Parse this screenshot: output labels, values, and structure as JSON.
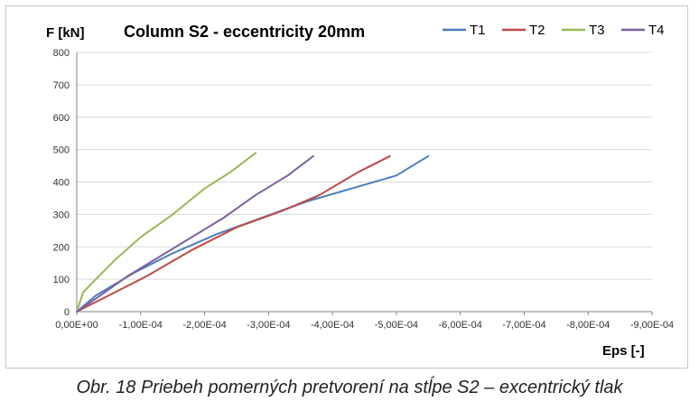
{
  "chart_data": {
    "type": "line",
    "title": "Column S2 - eccentricity 20mm",
    "ylabel": "F [kN]",
    "xlabel": "Eps [-]",
    "ylim": [
      0,
      800
    ],
    "xlim": [
      0,
      -0.0009
    ],
    "x_ticks": [
      "0,00E+00",
      "-1,00E-04",
      "-2,00E-04",
      "-3,00E-04",
      "-4,00E-04",
      "-5,00E-04",
      "-6,00E-04",
      "-7,00E-04",
      "-8,00E-04",
      "-9,00E-04"
    ],
    "y_ticks": [
      "0",
      "100",
      "200",
      "300",
      "400",
      "500",
      "600",
      "700",
      "800"
    ],
    "grid": "horizontal",
    "legend_position": "top-right",
    "series": [
      {
        "name": "T1",
        "color": "#4a7ebb",
        "x": [
          0,
          -3e-05,
          -9e-05,
          -0.00015,
          -0.00022,
          -0.00029,
          -0.00036,
          -0.00043,
          -0.0005,
          -0.00055
        ],
        "y": [
          0,
          50,
          120,
          180,
          240,
          290,
          340,
          380,
          420,
          480
        ]
      },
      {
        "name": "T2",
        "color": "#be4b48",
        "x": [
          0,
          -5e-05,
          -0.00011,
          -0.00018,
          -0.00025,
          -0.00032,
          -0.00038,
          -0.00044,
          -0.00049
        ],
        "y": [
          0,
          50,
          110,
          190,
          260,
          310,
          360,
          430,
          480
        ]
      },
      {
        "name": "T3",
        "color": "#98b954",
        "x": [
          0,
          -1e-05,
          -3e-05,
          -6e-05,
          -0.0001,
          -0.00015,
          -0.0002,
          -0.00024,
          -0.00028
        ],
        "y": [
          0,
          60,
          100,
          160,
          230,
          300,
          380,
          430,
          490
        ]
      },
      {
        "name": "T4",
        "color": "#7d60a0",
        "x": [
          0,
          -3e-05,
          -8e-05,
          -0.00013,
          -0.00018,
          -0.00023,
          -0.00028,
          -0.00033,
          -0.00037
        ],
        "y": [
          0,
          40,
          110,
          170,
          230,
          290,
          360,
          420,
          480
        ]
      }
    ]
  },
  "caption": "Obr. 18  Priebeh pomerných pretvorení na stĺpe S2 – excentrický tlak"
}
